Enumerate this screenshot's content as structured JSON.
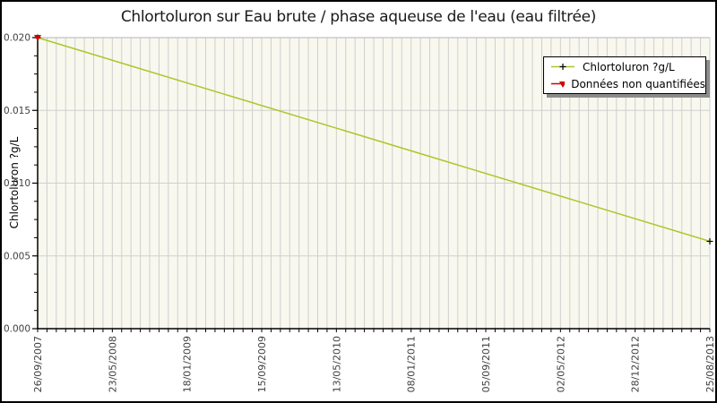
{
  "chart_data": {
    "type": "line",
    "title": "Chlortoluron sur Eau brute / phase aqueuse de l'eau (eau filtrée)",
    "ylabel": "Chlortoluron ?g/L",
    "xlabel": "",
    "ylim": [
      0,
      0.02
    ],
    "ytick_labels": [
      "0.000",
      "0.005",
      "0.010",
      "0.015",
      "0.020"
    ],
    "ytick_values": [
      0,
      0.005,
      0.01,
      0.015,
      0.02
    ],
    "y_minor_divisions": 4,
    "xtick_labels": [
      "26/09/2007",
      "23/05/2008",
      "18/01/2009",
      "15/09/2009",
      "13/05/2010",
      "08/01/2011",
      "05/09/2011",
      "02/05/2012",
      "28/12/2012",
      "25/08/2013"
    ],
    "x_minor_divisions": 72,
    "grid": "on",
    "legend_position": "top-right",
    "series": [
      {
        "name": "Chlortoluron ?g/L",
        "color": "#aac828",
        "marker": "plus",
        "marker_color": "#000000",
        "points": [
          {
            "x_label": "26/09/2007",
            "x_index": 0,
            "y": 0.02
          },
          {
            "x_label": "25/08/2013",
            "x_index": 9,
            "y": 0.006
          }
        ]
      },
      {
        "name": "Données non quantifiées",
        "color": "#d40000",
        "marker": "triangle-down",
        "marker_color": "#d40000",
        "points": [
          {
            "x_label": "26/09/2007",
            "x_index": 0,
            "y": 0.02
          }
        ]
      }
    ],
    "colors": {
      "plot_background": "#f8f8ef",
      "grid": "#cfcfcf",
      "plot_border": "#b5b5b5",
      "axis": "#000000",
      "tick_label": "#404040",
      "title": "#1a1a1a"
    }
  }
}
